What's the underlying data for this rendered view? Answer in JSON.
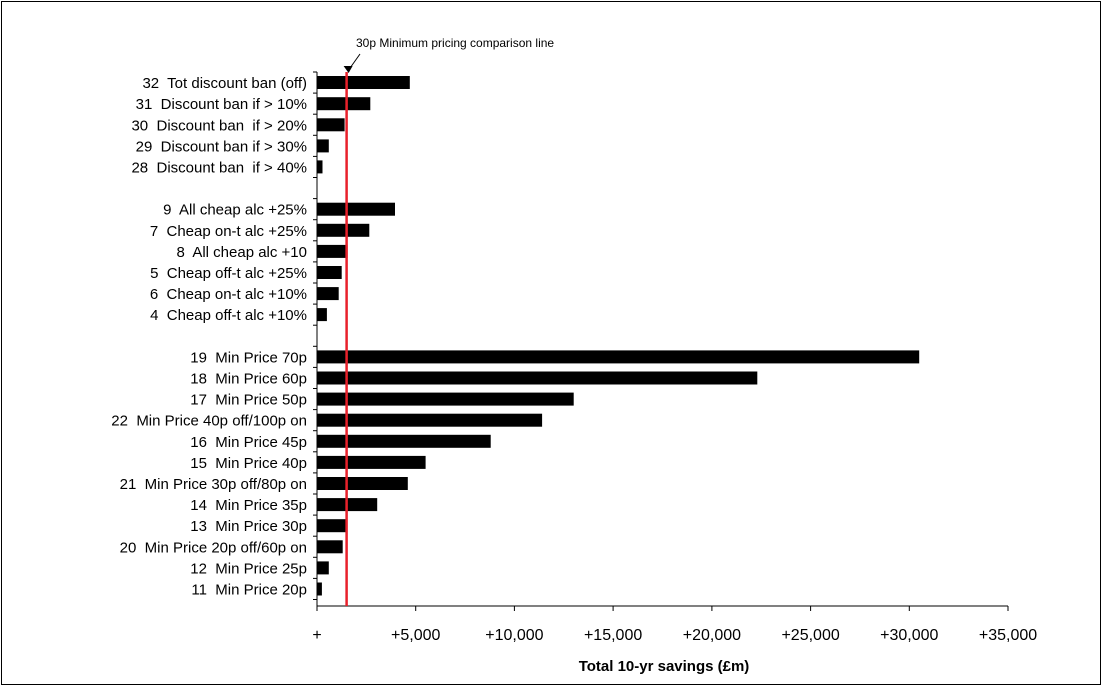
{
  "chart_data": {
    "type": "bar",
    "orientation": "horizontal",
    "xlabel": "Total 10-yr savings (£m)",
    "ylabel": "",
    "xlim": [
      0,
      35000
    ],
    "x_ticks": [
      0,
      5000,
      10000,
      15000,
      20000,
      25000,
      30000,
      35000
    ],
    "x_tick_labels": [
      "+",
      "+5,000",
      "+10,000",
      "+15,000",
      "+20,000",
      "+25,000",
      "+30,000",
      "+35,000"
    ],
    "grid": false,
    "legend": "none",
    "bar_color": "#000000",
    "groups": [
      {
        "bars": [
          {
            "label": "32  Tot discount ban (off)",
            "value": 4700
          },
          {
            "label": "31  Discount ban if > 10%",
            "value": 2700
          },
          {
            "label": "30  Discount ban  if > 20%",
            "value": 1400
          },
          {
            "label": "29  Discount ban if > 30%",
            "value": 600
          },
          {
            "label": "28  Discount ban  if > 40%",
            "value": 280
          }
        ]
      },
      {
        "bars": [
          {
            "label": "9  All cheap alc +25%",
            "value": 3950
          },
          {
            "label": "7  Cheap on-t alc +25%",
            "value": 2650
          },
          {
            "label": "8  All cheap alc +10",
            "value": 1550
          },
          {
            "label": "5  Cheap off-t alc +25%",
            "value": 1250
          },
          {
            "label": "6  Cheap on-t alc +10%",
            "value": 1100
          },
          {
            "label": "4  Cheap off-t alc +10%",
            "value": 500
          }
        ]
      },
      {
        "bars": [
          {
            "label": "19  Min Price 70p",
            "value": 30500
          },
          {
            "label": "18  Min Price 60p",
            "value": 22300
          },
          {
            "label": "17  Min Price 50p",
            "value": 13000
          },
          {
            "label": "22  Min Price 40p off/100p on",
            "value": 11400
          },
          {
            "label": "16  Min Price 45p",
            "value": 8800
          },
          {
            "label": "15  Min Price 40p",
            "value": 5500
          },
          {
            "label": "21  Min Price 30p off/80p on",
            "value": 4600
          },
          {
            "label": "14  Min Price 35p",
            "value": 3050
          },
          {
            "label": "13  Min Price 30p",
            "value": 1450
          },
          {
            "label": "20  Min Price 20p off/60p on",
            "value": 1300
          },
          {
            "label": "12  Min Price 25p",
            "value": 600
          },
          {
            "label": "11  Min Price 20p",
            "value": 250
          }
        ]
      }
    ],
    "reference_line": {
      "value": 1500,
      "color": "#e8212b",
      "annotation": "30p Minimum pricing comparison line"
    }
  }
}
